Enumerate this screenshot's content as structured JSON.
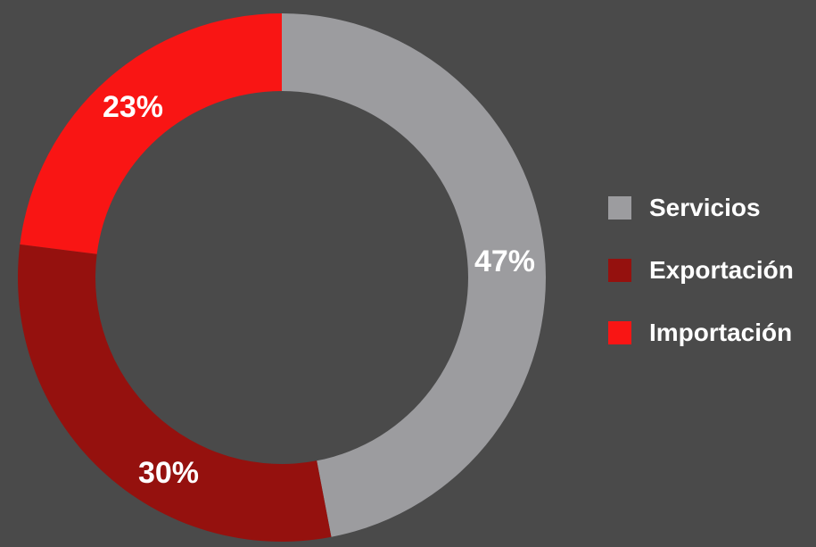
{
  "chart_data": {
    "type": "pie",
    "variant": "donut",
    "title": "",
    "legend_position": "right",
    "series": [
      {
        "categories": [
          "Servicios",
          "Exportación",
          "Importación"
        ],
        "values": [
          47,
          30,
          23
        ],
        "labels": [
          "47%",
          "30%",
          "23%"
        ],
        "colors": [
          "#9c9c9f",
          "#95110e",
          "#f91514"
        ]
      }
    ]
  },
  "theme": {
    "background": "#4a4a4a",
    "label_color": "#ffffff"
  }
}
